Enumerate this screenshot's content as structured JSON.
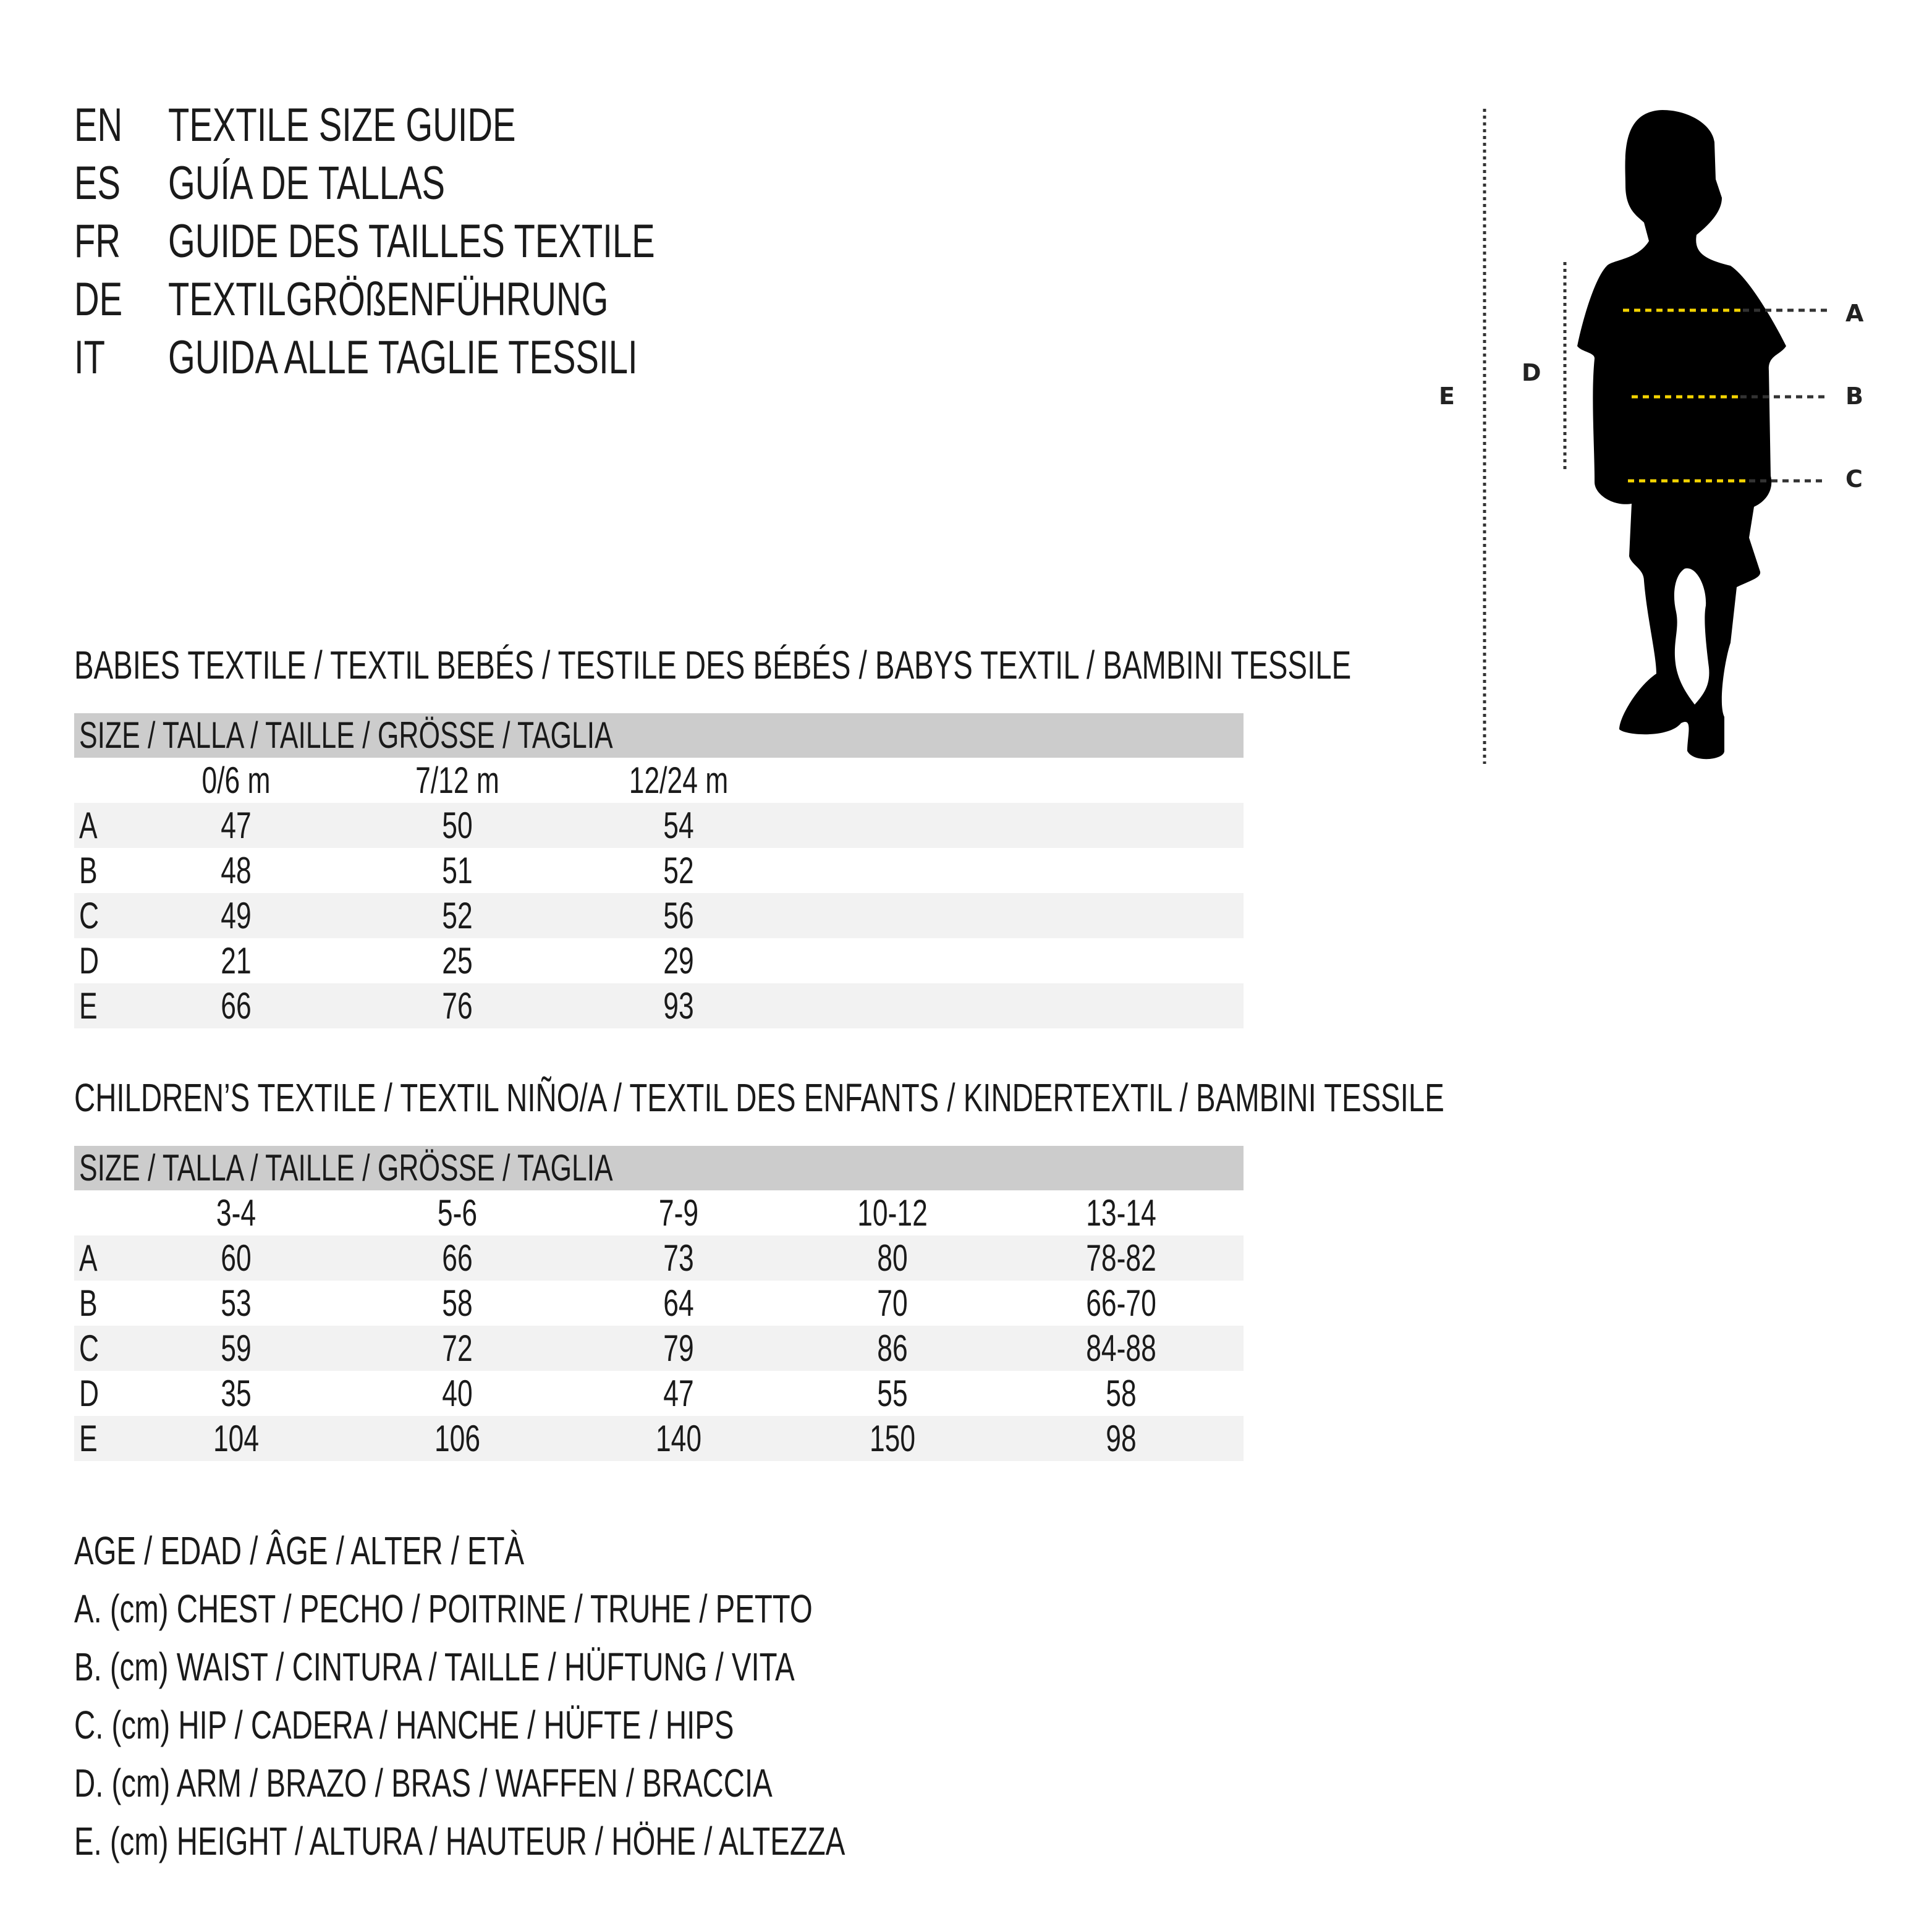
{
  "titles": [
    {
      "code": "EN",
      "text": "TEXTILE SIZE GUIDE"
    },
    {
      "code": "ES",
      "text": "GUÍA DE TALLAS"
    },
    {
      "code": "FR",
      "text": "GUIDE DES TAILLES TEXTILE"
    },
    {
      "code": "DE",
      "text": "TEXTILGRÖßENFÜHRUNG"
    },
    {
      "code": "IT",
      "text": "GUIDA ALLE TAGLIE TESSILI"
    }
  ],
  "babies": {
    "title": "BABIES TEXTILE / TEXTIL BEBÉS / TESTILE DES BÉBÉS / BABYS TEXTIL / BAMBINI TESSILE",
    "header": "SIZE / TALLA / TAILLE / GRÖSSE / TAGLIA",
    "columns": [
      "0/6 m",
      "7/12 m",
      "12/24 m"
    ],
    "rows": [
      {
        "label": "A",
        "values": [
          "47",
          "50",
          "54"
        ]
      },
      {
        "label": "B",
        "values": [
          "48",
          "51",
          "52"
        ]
      },
      {
        "label": "C",
        "values": [
          "49",
          "52",
          "56"
        ]
      },
      {
        "label": "D",
        "values": [
          "21",
          "25",
          "29"
        ]
      },
      {
        "label": "E",
        "values": [
          "66",
          "76",
          "93"
        ]
      }
    ]
  },
  "children": {
    "title": "CHILDREN’S TEXTILE / TEXTIL NIÑO/A / TEXTIL DES ENFANTS / KINDERTEXTIL / BAMBINI TESSILE",
    "header": "SIZE / TALLA / TAILLE / GRÖSSE / TAGLIA",
    "columns": [
      "3-4",
      "5-6",
      "7-9",
      "10-12",
      "13-14"
    ],
    "rows": [
      {
        "label": "A",
        "values": [
          "60",
          "66",
          "73",
          "80",
          "78-82"
        ]
      },
      {
        "label": "B",
        "values": [
          "53",
          "58",
          "64",
          "70",
          "66-70"
        ]
      },
      {
        "label": "C",
        "values": [
          "59",
          "72",
          "79",
          "86",
          "84-88"
        ]
      },
      {
        "label": "D",
        "values": [
          "35",
          "40",
          "47",
          "55",
          "58"
        ]
      },
      {
        "label": "E",
        "values": [
          "104",
          "106",
          "140",
          "150",
          "98"
        ]
      }
    ]
  },
  "legend": [
    "AGE / EDAD / ÂGE / ALTER / ETÀ",
    "A. (cm) CHEST / PECHO / POITRINE / TRUHE / PETTO",
    "B. (cm) WAIST / CINTURA / TAILLE / HÜFTUNG / VITA",
    "C. (cm) HIP / CADERA / HANCHE / HÜFTE / HIPS",
    "D. (cm) ARM / BRAZO / BRAS / WAFFEN / BRACCIA",
    "E. (cm) HEIGHT / ALTURA / HAUTEUR / HÖHE / ALTEZZA"
  ],
  "figure": {
    "labels": {
      "a": "A",
      "b": "B",
      "c": "C",
      "d": "D",
      "e": "E"
    },
    "colors": {
      "silhouette": "#000000",
      "measure_line": "#f5d400",
      "guide_line": "#333333"
    }
  }
}
